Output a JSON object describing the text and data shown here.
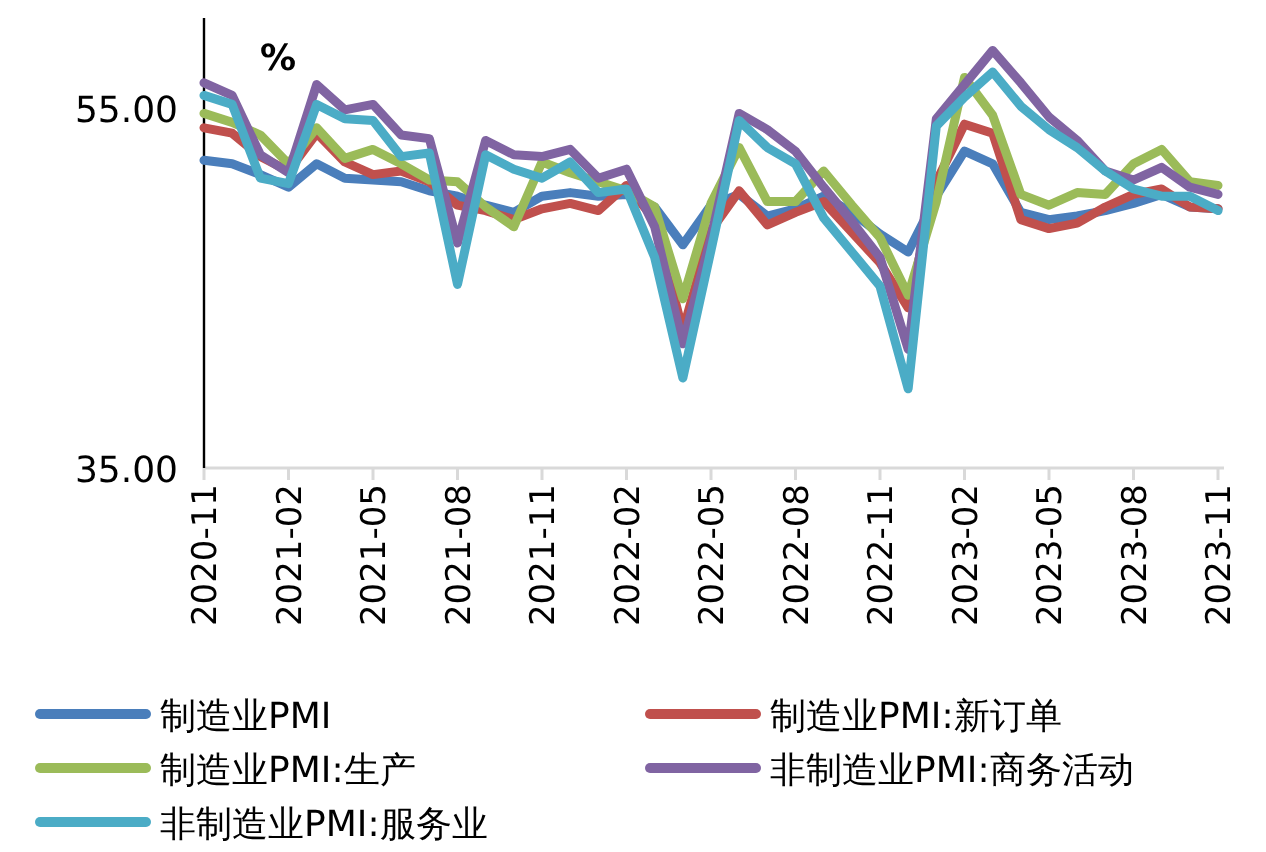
{
  "chart_data": {
    "type": "line",
    "annotations": [
      "%"
    ],
    "x": [
      "2020-11",
      "2020-12",
      "2021-01",
      "2021-02",
      "2021-03",
      "2021-04",
      "2021-05",
      "2021-06",
      "2021-07",
      "2021-08",
      "2021-09",
      "2021-10",
      "2021-11",
      "2021-12",
      "2022-01",
      "2022-02",
      "2022-03",
      "2022-04",
      "2022-05",
      "2022-06",
      "2022-07",
      "2022-08",
      "2022-09",
      "2022-10",
      "2022-11",
      "2022-12",
      "2023-01",
      "2023-02",
      "2023-03",
      "2023-04",
      "2023-05",
      "2023-06",
      "2023-07",
      "2023-08",
      "2023-09",
      "2023-10",
      "2023-11"
    ],
    "series": [
      {
        "name": "制造业PMI",
        "color": "#4a7ebb",
        "values": [
          52.1,
          51.9,
          51.3,
          50.6,
          51.9,
          51.1,
          51.0,
          50.9,
          50.4,
          50.1,
          49.6,
          49.2,
          50.1,
          50.3,
          50.1,
          50.2,
          49.5,
          47.4,
          49.6,
          50.2,
          49.0,
          49.4,
          50.1,
          49.2,
          48.0,
          47.0,
          50.1,
          52.6,
          51.9,
          49.2,
          48.8,
          49.0,
          49.3,
          49.7,
          50.2,
          49.5,
          49.4
        ]
      },
      {
        "name": "制造业PMI:新订单",
        "color": "#c0504d",
        "values": [
          53.9,
          53.6,
          52.3,
          51.5,
          53.6,
          52.0,
          51.3,
          51.5,
          50.9,
          49.6,
          49.3,
          48.8,
          49.4,
          49.7,
          49.3,
          50.7,
          48.8,
          42.6,
          48.2,
          50.4,
          48.5,
          49.2,
          49.8,
          48.1,
          46.4,
          43.9,
          50.9,
          54.1,
          53.6,
          48.8,
          48.3,
          48.6,
          49.5,
          50.2,
          50.5,
          49.5,
          49.4
        ]
      },
      {
        "name": "制造业PMI:生产",
        "color": "#9bbb59",
        "values": [
          54.7,
          54.2,
          53.5,
          51.9,
          53.9,
          52.2,
          52.7,
          51.9,
          51.0,
          50.9,
          49.5,
          48.4,
          52.0,
          51.4,
          50.9,
          50.4,
          49.5,
          44.4,
          49.7,
          52.8,
          49.8,
          49.8,
          51.5,
          49.6,
          47.8,
          44.6,
          49.8,
          56.7,
          54.6,
          50.2,
          49.6,
          50.3,
          50.2,
          51.9,
          52.7,
          50.9,
          50.7
        ]
      },
      {
        "name": "非制造业PMI:商务活动",
        "color": "#8064a2",
        "values": [
          56.4,
          55.7,
          52.4,
          51.4,
          56.3,
          54.9,
          55.2,
          53.5,
          53.3,
          47.5,
          53.2,
          52.4,
          52.3,
          52.7,
          51.1,
          51.6,
          48.4,
          41.9,
          47.8,
          54.7,
          53.8,
          52.6,
          50.6,
          48.7,
          46.7,
          41.6,
          54.4,
          56.3,
          58.2,
          56.4,
          54.5,
          53.2,
          51.5,
          51.0,
          51.7,
          50.6,
          50.2
        ]
      },
      {
        "name": "非制造业PMI:服务业",
        "color": "#4bacc6",
        "values": [
          55.7,
          55.2,
          51.1,
          50.8,
          55.2,
          54.4,
          54.3,
          52.3,
          52.5,
          45.2,
          52.4,
          51.6,
          51.1,
          52.0,
          50.3,
          50.5,
          46.7,
          40.0,
          47.1,
          54.3,
          52.8,
          51.9,
          48.9,
          47.0,
          45.1,
          39.4,
          54.0,
          55.6,
          57.0,
          55.1,
          53.8,
          52.8,
          51.5,
          50.5,
          50.1,
          50.1,
          49.3
        ]
      }
    ],
    "xlim": [
      "2020-11",
      "2023-11"
    ],
    "xticks": [
      {
        "value": "2020-11",
        "label": "2020-11"
      },
      {
        "value": "2021-02",
        "label": "2021-02"
      },
      {
        "value": "2021-05",
        "label": "2021-05"
      },
      {
        "value": "2021-08",
        "label": "2021-08"
      },
      {
        "value": "2021-11",
        "label": "2021-11"
      },
      {
        "value": "2022-02",
        "label": "2022-02"
      },
      {
        "value": "2022-05",
        "label": "2022-05"
      },
      {
        "value": "2022-08",
        "label": "2022-08"
      },
      {
        "value": "2022-11",
        "label": "2022-11"
      },
      {
        "value": "2023-02",
        "label": "2023-02"
      },
      {
        "value": "2023-05",
        "label": "2023-05"
      },
      {
        "value": "2023-08",
        "label": "2023-08"
      },
      {
        "value": "2023-11",
        "label": "2023-11"
      }
    ],
    "ylim": [
      35,
      60
    ],
    "yticks": [
      {
        "value": 35,
        "label": "35.00"
      },
      {
        "value": 55,
        "label": "55.00"
      }
    ],
    "legend": "bottom",
    "marker": "none",
    "line_style": "solid",
    "grid": false
  }
}
